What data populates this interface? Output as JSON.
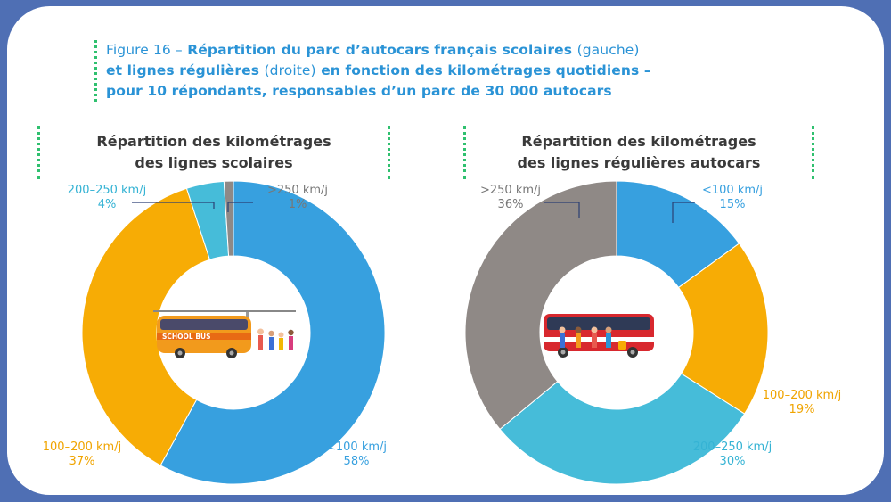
{
  "figure": {
    "number": "Figure 16 –",
    "line1_bold_a": "Répartition du parc d’autocars français scolaires",
    "line1_light": "(gauche)",
    "line2_bold_a": "et lignes régulières",
    "line2_light": "(droite)",
    "line2_bold_b": "en fonction des kilométrages quotidiens –",
    "line3": "pour 10 répondants, responsables d’un parc de 30 000 autocars"
  },
  "colors": {
    "blue": "#37a0df",
    "orange": "#f7ac05",
    "cyan": "#46bcd9",
    "grey": "#8f8986",
    "title_blue": "#2a93d6",
    "frame": "#4f6fb4",
    "dots": "#2fc06f"
  },
  "chart_data": [
    {
      "type": "pie",
      "variant": "donut",
      "title_line1": "Répartition des kilométrages",
      "title_line2": "des lignes scolaires",
      "center_illustration": "school-bus-icon",
      "slices": [
        {
          "label": "<100 km/j",
          "value": 58,
          "display": "58%",
          "color": "#37a0df",
          "text_color": "#37a0df"
        },
        {
          "label": "100–200 km/j",
          "value": 37,
          "display": "37%",
          "color": "#f7ac05",
          "text_color": "#f0a400"
        },
        {
          "label": "200–250 km/j",
          "value": 4,
          "display": "4%",
          "color": "#46bcd9",
          "text_color": "#35b3d4"
        },
        {
          "label": ">250 km/j",
          "value": 1,
          "display": "1%",
          "color": "#8f8986",
          "text_color": "#777777"
        }
      ]
    },
    {
      "type": "pie",
      "variant": "donut",
      "title_line1": "Répartition des kilométrages",
      "title_line2": "des lignes régulières autocars",
      "center_illustration": "coach-bus-icon",
      "slices": [
        {
          "label": "<100 km/j",
          "value": 15,
          "display": "15%",
          "color": "#37a0df",
          "text_color": "#37a0df"
        },
        {
          "label": "100–200 km/j",
          "value": 19,
          "display": "19%",
          "color": "#f7ac05",
          "text_color": "#f0a400"
        },
        {
          "label": "200–250 km/j",
          "value": 30,
          "display": "30%",
          "color": "#46bcd9",
          "text_color": "#35b3d4"
        },
        {
          "label": ">250 km/j",
          "value": 36,
          "display": "36%",
          "color": "#8f8986",
          "text_color": "#777777"
        }
      ]
    }
  ],
  "illustration": {
    "bus_sign": "SCHOOL BUS"
  }
}
